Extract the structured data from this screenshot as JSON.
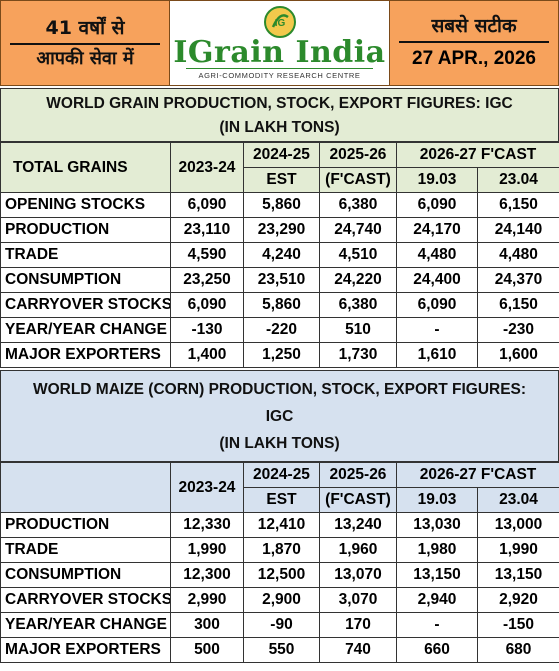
{
  "header": {
    "left_line1": "41 वर्षों से",
    "left_line2": "आपकी सेवा में",
    "brand": "IGrain India",
    "tagline": "AGRI-COMMODITY RESEARCH CENTRE",
    "logo_mark": "IG",
    "right_line1": "सबसे सटीक",
    "date": "27 APR., 2026"
  },
  "watermark": "IGrain India",
  "grains": {
    "title_line1": "WORLD GRAIN PRODUCTION, STOCK, EXPORT FIGURES: IGC",
    "title_line2": "(IN LAKH TONS)",
    "head_label": "TOTAL GRAINS",
    "col_2023": "2023-24",
    "col_2024_a": "2024-25",
    "col_2024_b": "EST",
    "col_2025_a": "2025-26",
    "col_2025_b": "(F'CAST)",
    "col_2026": "2026-27 F'CAST",
    "col_1903": "19.03",
    "col_2304": "23.04",
    "rows": [
      {
        "label": "OPENING STOCKS",
        "v": [
          "6,090",
          "5,860",
          "6,380",
          "6,090",
          "6,150"
        ]
      },
      {
        "label": "PRODUCTION",
        "v": [
          "23,110",
          "23,290",
          "24,740",
          "24,170",
          "24,140"
        ]
      },
      {
        "label": "TRADE",
        "v": [
          "4,590",
          "4,240",
          "4,510",
          "4,480",
          "4,480"
        ]
      },
      {
        "label": "CONSUMPTION",
        "v": [
          "23,250",
          "23,510",
          "24,220",
          "24,400",
          "24,370"
        ]
      },
      {
        "label": "CARRYOVER STOCKS",
        "v": [
          "6,090",
          "5,860",
          "6,380",
          "6,090",
          "6,150"
        ]
      },
      {
        "label": "YEAR/YEAR CHANGE",
        "v": [
          "-130",
          "-220",
          "510",
          "-",
          "-230"
        ]
      },
      {
        "label": "MAJOR EXPORTERS",
        "v": [
          "1,400",
          "1,250",
          "1,730",
          "1,610",
          "1,600"
        ]
      }
    ]
  },
  "maize": {
    "title_line1": "WORLD MAIZE (CORN) PRODUCTION, STOCK, EXPORT FIGURES:",
    "title_line2": "IGC",
    "title_line3": "(IN LAKH TONS)",
    "head_label": "",
    "col_2023": "2023-24",
    "col_2024_a": "2024-25",
    "col_2024_b": "EST",
    "col_2025_a": "2025-26",
    "col_2025_b": "(F'CAST)",
    "col_2026": "2026-27 F'CAST",
    "col_1903": "19.03",
    "col_2304": "23.04",
    "rows": [
      {
        "label": "PRODUCTION",
        "v": [
          "12,330",
          "12,410",
          "13,240",
          "13,030",
          "13,000"
        ]
      },
      {
        "label": "TRADE",
        "v": [
          "1,990",
          "1,870",
          "1,960",
          "1,980",
          "1,990"
        ]
      },
      {
        "label": "CONSUMPTION",
        "v": [
          "12,300",
          "12,500",
          "13,070",
          "13,150",
          "13,150"
        ]
      },
      {
        "label": "CARRYOVER STOCKS",
        "v": [
          "2,990",
          "2,900",
          "3,070",
          "2,940",
          "2,920"
        ]
      },
      {
        "label": "YEAR/YEAR CHANGE",
        "v": [
          "300",
          "-90",
          "170",
          "-",
          "-150"
        ]
      },
      {
        "label": "MAJOR EXPORTERS",
        "v": [
          "500",
          "550",
          "740",
          "660",
          "680"
        ]
      }
    ]
  }
}
